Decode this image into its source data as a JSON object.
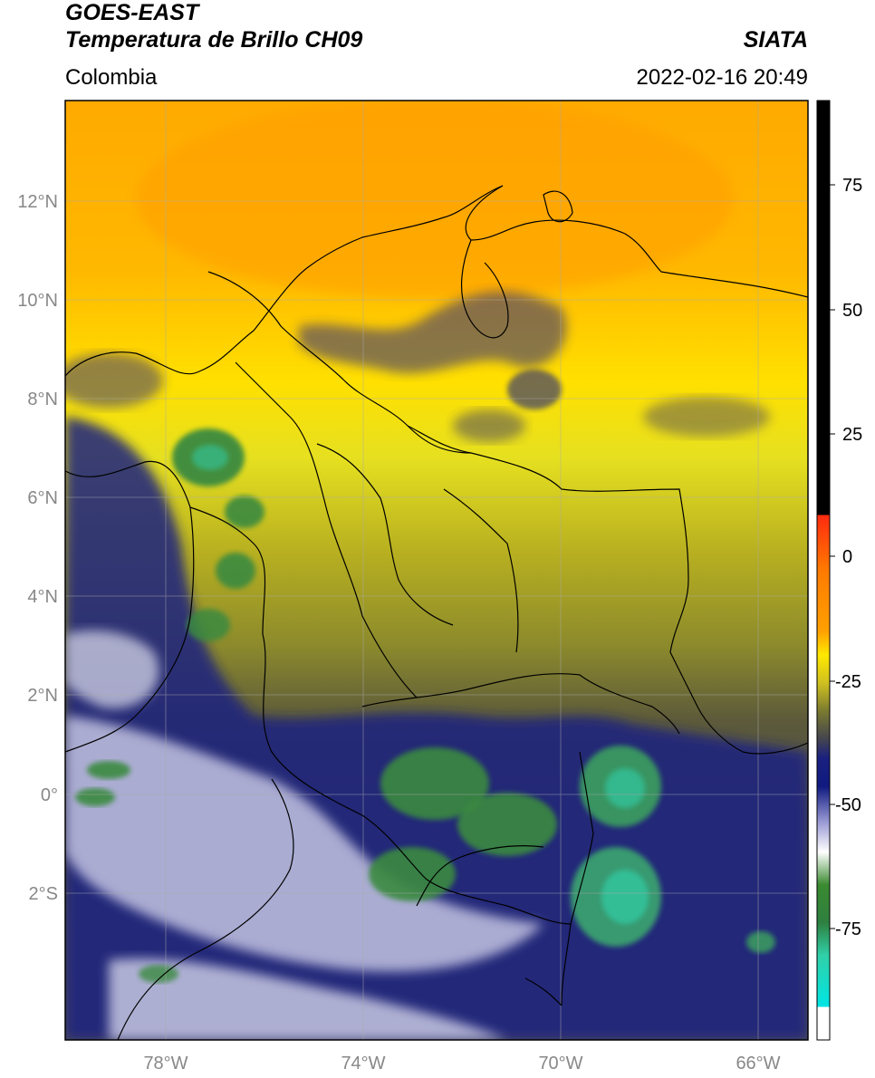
{
  "header": {
    "satellite": "GOES-EAST",
    "product": "Temperatura de Brillo CH09",
    "brand": "SIATA",
    "region": "Colombia",
    "datetime": "2022-02-16 20:49"
  },
  "axes": {
    "lat_labels": [
      "12°N",
      "10°N",
      "8°N",
      "6°N",
      "4°N",
      "2°N",
      "0°",
      "2°S"
    ],
    "lon_labels": [
      "78°W",
      "74°W",
      "70°W",
      "66°W"
    ]
  },
  "colorbar": {
    "tick_labels": [
      "75",
      "50",
      "25",
      "0",
      "-25",
      "-50",
      "-75"
    ],
    "colors": {
      "black": "#000000",
      "red": "#e01010",
      "orange": "#ff9a00",
      "yellow": "#ffee00",
      "olive": "#6b6b2a",
      "gray": "#4a4a52",
      "navy": "#101a80",
      "white": "#ffffff",
      "green": "#3a8a30",
      "teal": "#30d0a8",
      "cyan": "#00e5e5"
    }
  }
}
